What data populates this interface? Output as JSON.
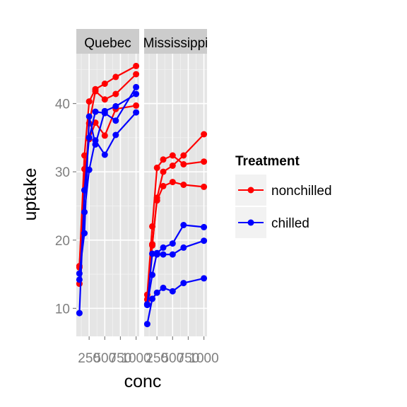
{
  "chart_data": {
    "type": "line",
    "xlabel": "conc",
    "ylabel": "uptake",
    "x_tick_labels": [
      "250",
      "500",
      "750",
      "1000"
    ],
    "y_tick_labels": [
      "10",
      "20",
      "30",
      "40"
    ],
    "y_ticks": [
      10,
      20,
      30,
      40
    ],
    "x_ticks": [
      250,
      500,
      750,
      1000
    ],
    "xlim": [
      45,
      1050
    ],
    "ylim": [
      5.9,
      47.3
    ],
    "x": [
      95,
      175,
      250,
      350,
      500,
      675,
      1000
    ],
    "grid": true,
    "legend": {
      "title": "Treatment",
      "position": "right",
      "entries": [
        {
          "label": "nonchilled",
          "color": "#ff0000"
        },
        {
          "label": "chilled",
          "color": "#0000ff"
        }
      ]
    },
    "panels": [
      {
        "strip": "Quebec",
        "series": [
          {
            "group": "nonchilled",
            "color": "#ff0000",
            "values": [
              16.0,
              30.4,
              34.8,
              37.2,
              35.3,
              39.2,
              39.7
            ]
          },
          {
            "group": "nonchilled",
            "color": "#ff0000",
            "values": [
              13.6,
              27.3,
              37.1,
              41.8,
              40.6,
              41.4,
              44.3
            ]
          },
          {
            "group": "nonchilled",
            "color": "#ff0000",
            "values": [
              16.2,
              32.4,
              40.3,
              42.1,
              42.9,
              43.9,
              45.5
            ]
          },
          {
            "group": "chilled",
            "color": "#0000ff",
            "values": [
              14.2,
              24.1,
              30.3,
              34.6,
              32.5,
              35.4,
              38.7
            ]
          },
          {
            "group": "chilled",
            "color": "#0000ff",
            "values": [
              9.3,
              27.3,
              35.0,
              38.8,
              38.6,
              37.5,
              42.4
            ]
          },
          {
            "group": "chilled",
            "color": "#0000ff",
            "values": [
              15.1,
              21.0,
              38.1,
              34.0,
              38.9,
              39.6,
              41.4
            ]
          }
        ]
      },
      {
        "strip": "Mississippi",
        "series": [
          {
            "group": "nonchilled",
            "color": "#ff0000",
            "values": [
              10.6,
              19.2,
              26.2,
              30.0,
              30.9,
              32.4,
              35.5
            ]
          },
          {
            "group": "nonchilled",
            "color": "#ff0000",
            "values": [
              12.0,
              22.0,
              30.6,
              31.8,
              32.4,
              31.1,
              31.5
            ]
          },
          {
            "group": "nonchilled",
            "color": "#ff0000",
            "values": [
              11.3,
              19.4,
              25.8,
              27.9,
              28.5,
              28.1,
              27.8
            ]
          },
          {
            "group": "chilled",
            "color": "#0000ff",
            "values": [
              10.5,
              14.9,
              18.1,
              18.9,
              19.5,
              22.2,
              21.9
            ]
          },
          {
            "group": "chilled",
            "color": "#0000ff",
            "values": [
              7.7,
              11.4,
              12.3,
              13.0,
              12.5,
              13.7,
              14.4
            ]
          },
          {
            "group": "chilled",
            "color": "#0000ff",
            "values": [
              10.6,
              18.0,
              17.9,
              17.9,
              17.9,
              18.9,
              19.9
            ]
          }
        ]
      }
    ]
  }
}
